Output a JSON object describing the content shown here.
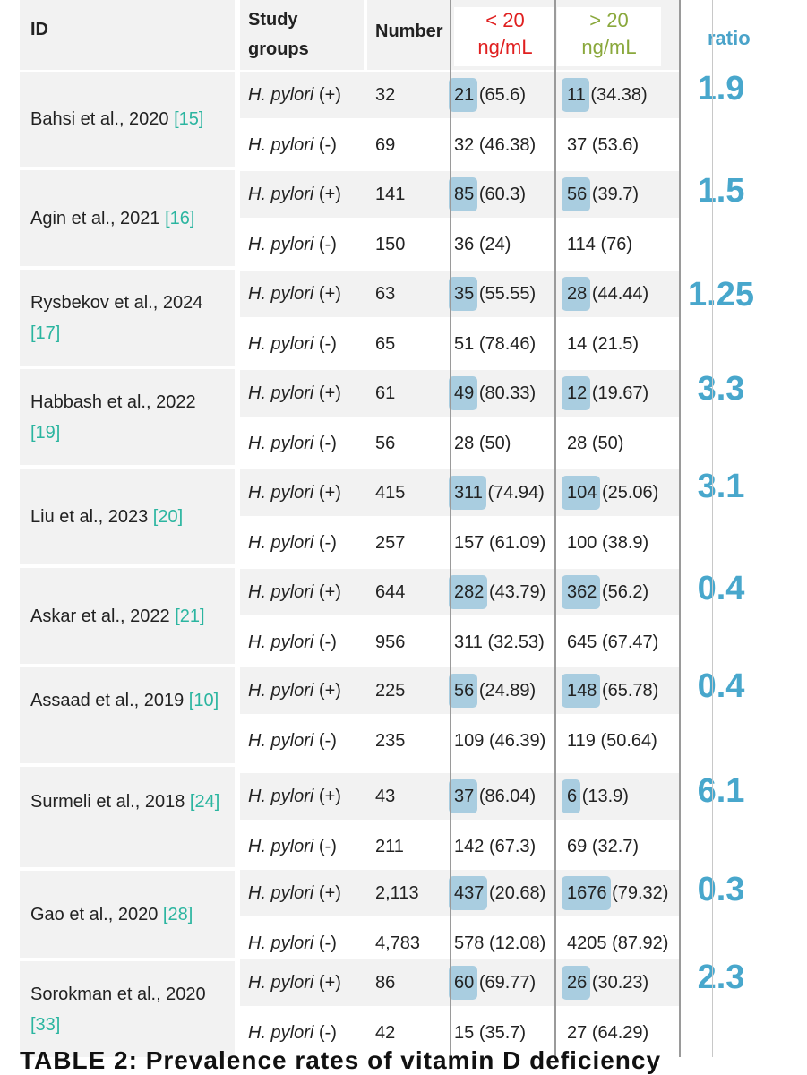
{
  "header": {
    "id": "ID",
    "study_groups": "Study groups",
    "number": "Number",
    "lt20_line1": "< 20",
    "lt20_line2": "ng/mL",
    "gt20_line1": "> 20",
    "gt20_line2": "ng/mL",
    "ratio": "ratio"
  },
  "colors": {
    "citation": "#2bb5a0",
    "highlight": "#6fb0d2",
    "ratio": "#48a7cc",
    "lt_header": "#e02020",
    "gt_header": "#8aa83c"
  },
  "studies": [
    {
      "author": "Bahsi et al., 2020",
      "cite": "[15]",
      "ratio": "1.9",
      "rows": [
        {
          "group": "H. pylori",
          "sign": "(+)",
          "number": "32",
          "lt_n": "21",
          "lt_pct": "(65.6)",
          "gt_n": "11",
          "gt_pct": "(34.38)"
        },
        {
          "group": "H. pylori",
          "sign": "(-)",
          "number": "69",
          "lt_n": "32",
          "lt_pct": "(46.38)",
          "gt_n": "37",
          "gt_pct": "(53.6)"
        }
      ]
    },
    {
      "author": "Agin et al., 2021",
      "cite": "[16]",
      "ratio": "1.5",
      "rows": [
        {
          "group": "H. pylori",
          "sign": "(+)",
          "number": "141",
          "lt_n": "85",
          "lt_pct": "(60.3)",
          "gt_n": "56",
          "gt_pct": "(39.7)"
        },
        {
          "group": "H. pylori",
          "sign": "(-)",
          "number": "150",
          "lt_n": "36",
          "lt_pct": "(24)",
          "gt_n": "114",
          "gt_pct": "(76)"
        }
      ]
    },
    {
      "author": "Rysbekov et al., 2024",
      "cite": "[17]",
      "ratio": "1.25",
      "rows": [
        {
          "group": "H. pylori",
          "sign": "(+)",
          "number": "63",
          "lt_n": "35",
          "lt_pct": "(55.55)",
          "gt_n": "28",
          "gt_pct": "(44.44)"
        },
        {
          "group": "H. pylori",
          "sign": "(-)",
          "number": "65",
          "lt_n": "51",
          "lt_pct": "(78.46)",
          "gt_n": "14",
          "gt_pct": "(21.5)"
        }
      ]
    },
    {
      "author": "Habbash et al., 2022",
      "cite": "[19]",
      "ratio": "3.3",
      "rows": [
        {
          "group": "H. pylori",
          "sign": "(+)",
          "number": "61",
          "lt_n": "49",
          "lt_pct": "(80.33)",
          "gt_n": "12",
          "gt_pct": "(19.67)"
        },
        {
          "group": "H. pylori",
          "sign": "(-)",
          "number": "56",
          "lt_n": "28",
          "lt_pct": "(50)",
          "gt_n": "28",
          "gt_pct": "(50)"
        }
      ]
    },
    {
      "author": "Liu et al., 2023",
      "cite": "[20]",
      "ratio": "3.1",
      "rows": [
        {
          "group": "H. pylori",
          "sign": "(+)",
          "number": "415",
          "lt_n": "311",
          "lt_pct": "(74.94)",
          "gt_n": "104",
          "gt_pct": "(25.06)"
        },
        {
          "group": "H. pylori",
          "sign": "(-)",
          "number": "257",
          "lt_n": "157",
          "lt_pct": "(61.09)",
          "gt_n": "100",
          "gt_pct": "(38.9)"
        }
      ]
    },
    {
      "author": "Askar et al., 2022",
      "cite": "[21]",
      "ratio": "0.4",
      "rows": [
        {
          "group": "H. pylori",
          "sign": "(+)",
          "number": "644",
          "lt_n": "282",
          "lt_pct": "(43.79)",
          "gt_n": "362",
          "gt_pct": "(56.2)"
        },
        {
          "group": "H. pylori",
          "sign": "(-)",
          "number": "956",
          "lt_n": "311",
          "lt_pct": "(32.53)",
          "gt_n": "645",
          "gt_pct": "(67.47)"
        }
      ]
    },
    {
      "author": "Assaad et al., 2019",
      "cite": "[10]",
      "ratio": "0.4",
      "rows": [
        {
          "group": "H. pylori",
          "sign": "(+)",
          "number": "225",
          "lt_n": "56",
          "lt_pct": "(24.89)",
          "gt_n": "148",
          "gt_pct": "(65.78)"
        },
        {
          "group": "H. pylori",
          "sign": "(-)",
          "number": "235",
          "lt_n": "109",
          "lt_pct": "(46.39)",
          "gt_n": "119",
          "gt_pct": "(50.64)"
        }
      ]
    },
    {
      "author": "Surmeli et al., 2018",
      "cite": "[24]",
      "ratio": "6.1",
      "rows": [
        {
          "group": "H. pylori",
          "sign": "(+)",
          "number": "43",
          "lt_n": "37",
          "lt_pct": "(86.04)",
          "gt_n": "6",
          "gt_pct": "(13.9)"
        },
        {
          "group": "H. pylori",
          "sign": "(-)",
          "number": "211",
          "lt_n": "142",
          "lt_pct": "(67.3)",
          "gt_n": "69",
          "gt_pct": "(32.7)"
        }
      ]
    },
    {
      "author": "Gao et al., 2020",
      "cite": "[28]",
      "ratio": "0.3",
      "rows": [
        {
          "group": "H. pylori",
          "sign": "(+)",
          "number": "2,113",
          "lt_n": "437",
          "lt_pct": "(20.68)",
          "gt_n": "1676",
          "gt_pct": "(79.32)"
        },
        {
          "group": "H. pylori",
          "sign": "(-)",
          "number": "4,783",
          "lt_n": "578",
          "lt_pct": "(12.08)",
          "gt_n": "4205",
          "gt_pct": "(87.92)"
        }
      ]
    },
    {
      "author": "Sorokman et al., 2020",
      "cite": "[33]",
      "ratio": "2.3",
      "rows": [
        {
          "group": "H. pylori",
          "sign": "(+)",
          "number": "86",
          "lt_n": "60",
          "lt_pct": "(69.77)",
          "gt_n": "26",
          "gt_pct": "(30.23)"
        },
        {
          "group": "H. pylori",
          "sign": "(-)",
          "number": "42",
          "lt_n": "15",
          "lt_pct": "(35.7)",
          "gt_n": "27",
          "gt_pct": "(64.29)"
        }
      ]
    }
  ],
  "footer": "TABLE 2: Prevalence rates of vitamin D deficiency"
}
